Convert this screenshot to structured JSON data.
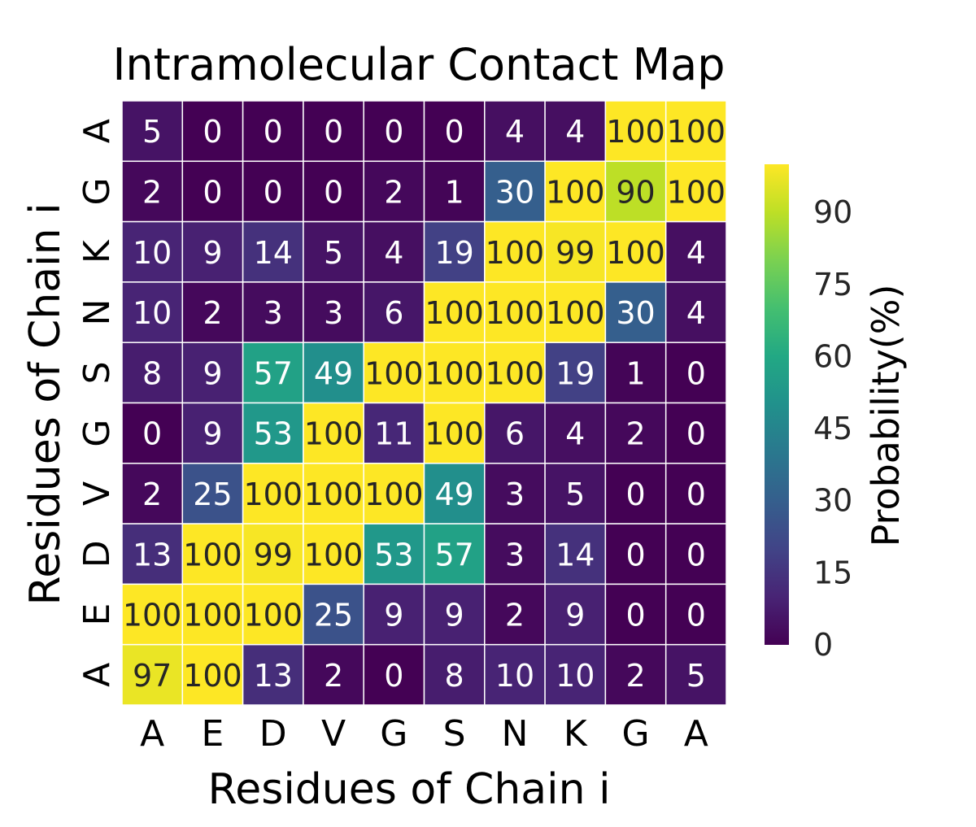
{
  "chart_data": {
    "type": "heatmap",
    "title": "Intramolecular Contact Map",
    "xlabel": "Residues of Chain i",
    "ylabel": "Residues of Chain i",
    "x_categories": [
      "A",
      "E",
      "D",
      "V",
      "G",
      "S",
      "N",
      "K",
      "G",
      "A"
    ],
    "y_categories": [
      "A",
      "G",
      "K",
      "N",
      "S",
      "G",
      "V",
      "D",
      "E",
      "A"
    ],
    "values": [
      [
        5,
        0,
        0,
        0,
        0,
        0,
        4,
        4,
        100,
        100
      ],
      [
        2,
        0,
        0,
        0,
        2,
        1,
        30,
        100,
        90,
        100
      ],
      [
        10,
        9,
        14,
        5,
        4,
        19,
        100,
        99,
        100,
        4
      ],
      [
        10,
        2,
        3,
        3,
        6,
        100,
        100,
        100,
        30,
        4
      ],
      [
        8,
        9,
        57,
        49,
        100,
        100,
        100,
        19,
        1,
        0
      ],
      [
        0,
        9,
        53,
        100,
        11,
        100,
        6,
        4,
        2,
        0
      ],
      [
        2,
        25,
        100,
        100,
        100,
        49,
        3,
        5,
        0,
        0
      ],
      [
        13,
        100,
        99,
        100,
        53,
        57,
        3,
        14,
        0,
        0
      ],
      [
        100,
        100,
        100,
        25,
        9,
        9,
        2,
        9,
        0,
        0
      ],
      [
        97,
        100,
        13,
        2,
        0,
        8,
        10,
        10,
        2,
        5
      ]
    ],
    "colorbar": {
      "label": "Probability(%)",
      "ticks": [
        "0",
        "15",
        "30",
        "45",
        "60",
        "75",
        "90"
      ],
      "range": [
        0,
        100
      ],
      "colormap": "viridis"
    },
    "annotations": true
  }
}
